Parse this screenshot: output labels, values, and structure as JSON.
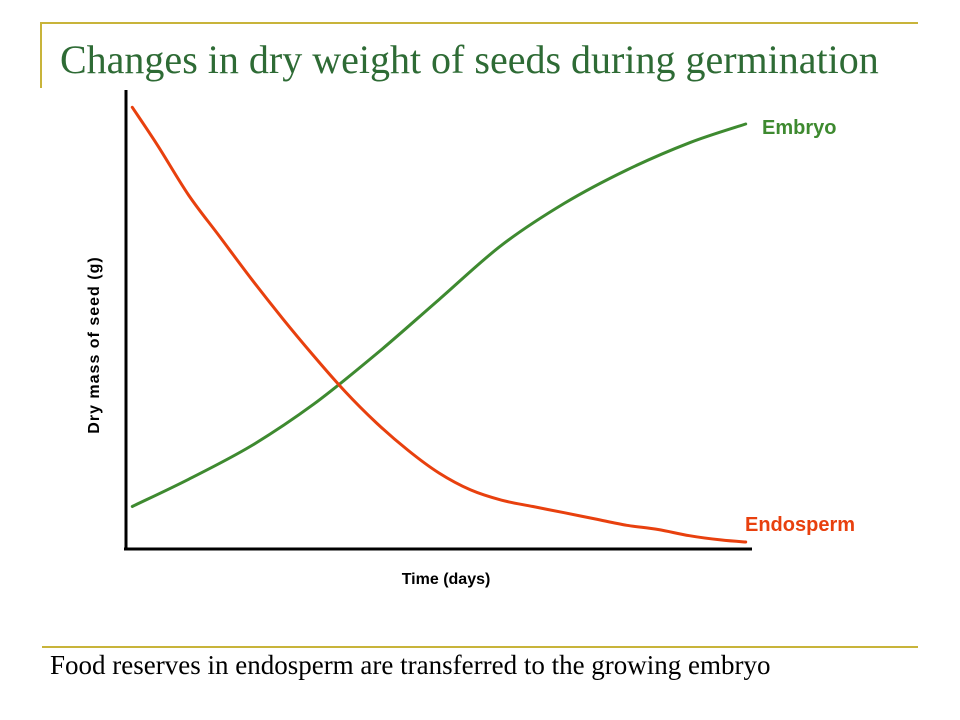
{
  "slide": {
    "title": "Changes in dry weight of seeds during germination",
    "caption": "Food reserves in endosperm are transferred to the growing embryo",
    "accent_color": "#c8b43a",
    "title_color": "#2e6b35"
  },
  "chart_data": {
    "type": "line",
    "title": "",
    "xlabel": "Time (days)",
    "ylabel": "Dry mass of seed (g)",
    "xlim": [
      0,
      100
    ],
    "ylim": [
      0,
      100
    ],
    "x_ticks": [],
    "y_ticks": [],
    "grid": false,
    "legend": "inline labels at line ends",
    "series": [
      {
        "name": "Embryo",
        "color": "#3e8a30",
        "x": [
          1,
          10,
          20,
          30,
          40,
          50,
          60,
          70,
          80,
          90,
          99
        ],
        "y": [
          8.5,
          15,
          23,
          33,
          45,
          58,
          71,
          81,
          89,
          95.5,
          100
        ]
      },
      {
        "name": "Endosperm",
        "color": "#e8400e",
        "x": [
          1,
          5,
          10,
          15,
          20,
          25,
          30,
          35,
          40,
          45,
          50,
          55,
          60,
          65,
          70,
          75,
          80,
          85,
          90,
          95,
          99
        ],
        "y": [
          104,
          95,
          83,
          73,
          63,
          53.5,
          44.5,
          36,
          28.5,
          22,
          16.5,
          12.5,
          10,
          8.5,
          7,
          5.5,
          4,
          3,
          1.5,
          0.5,
          0
        ]
      }
    ]
  }
}
